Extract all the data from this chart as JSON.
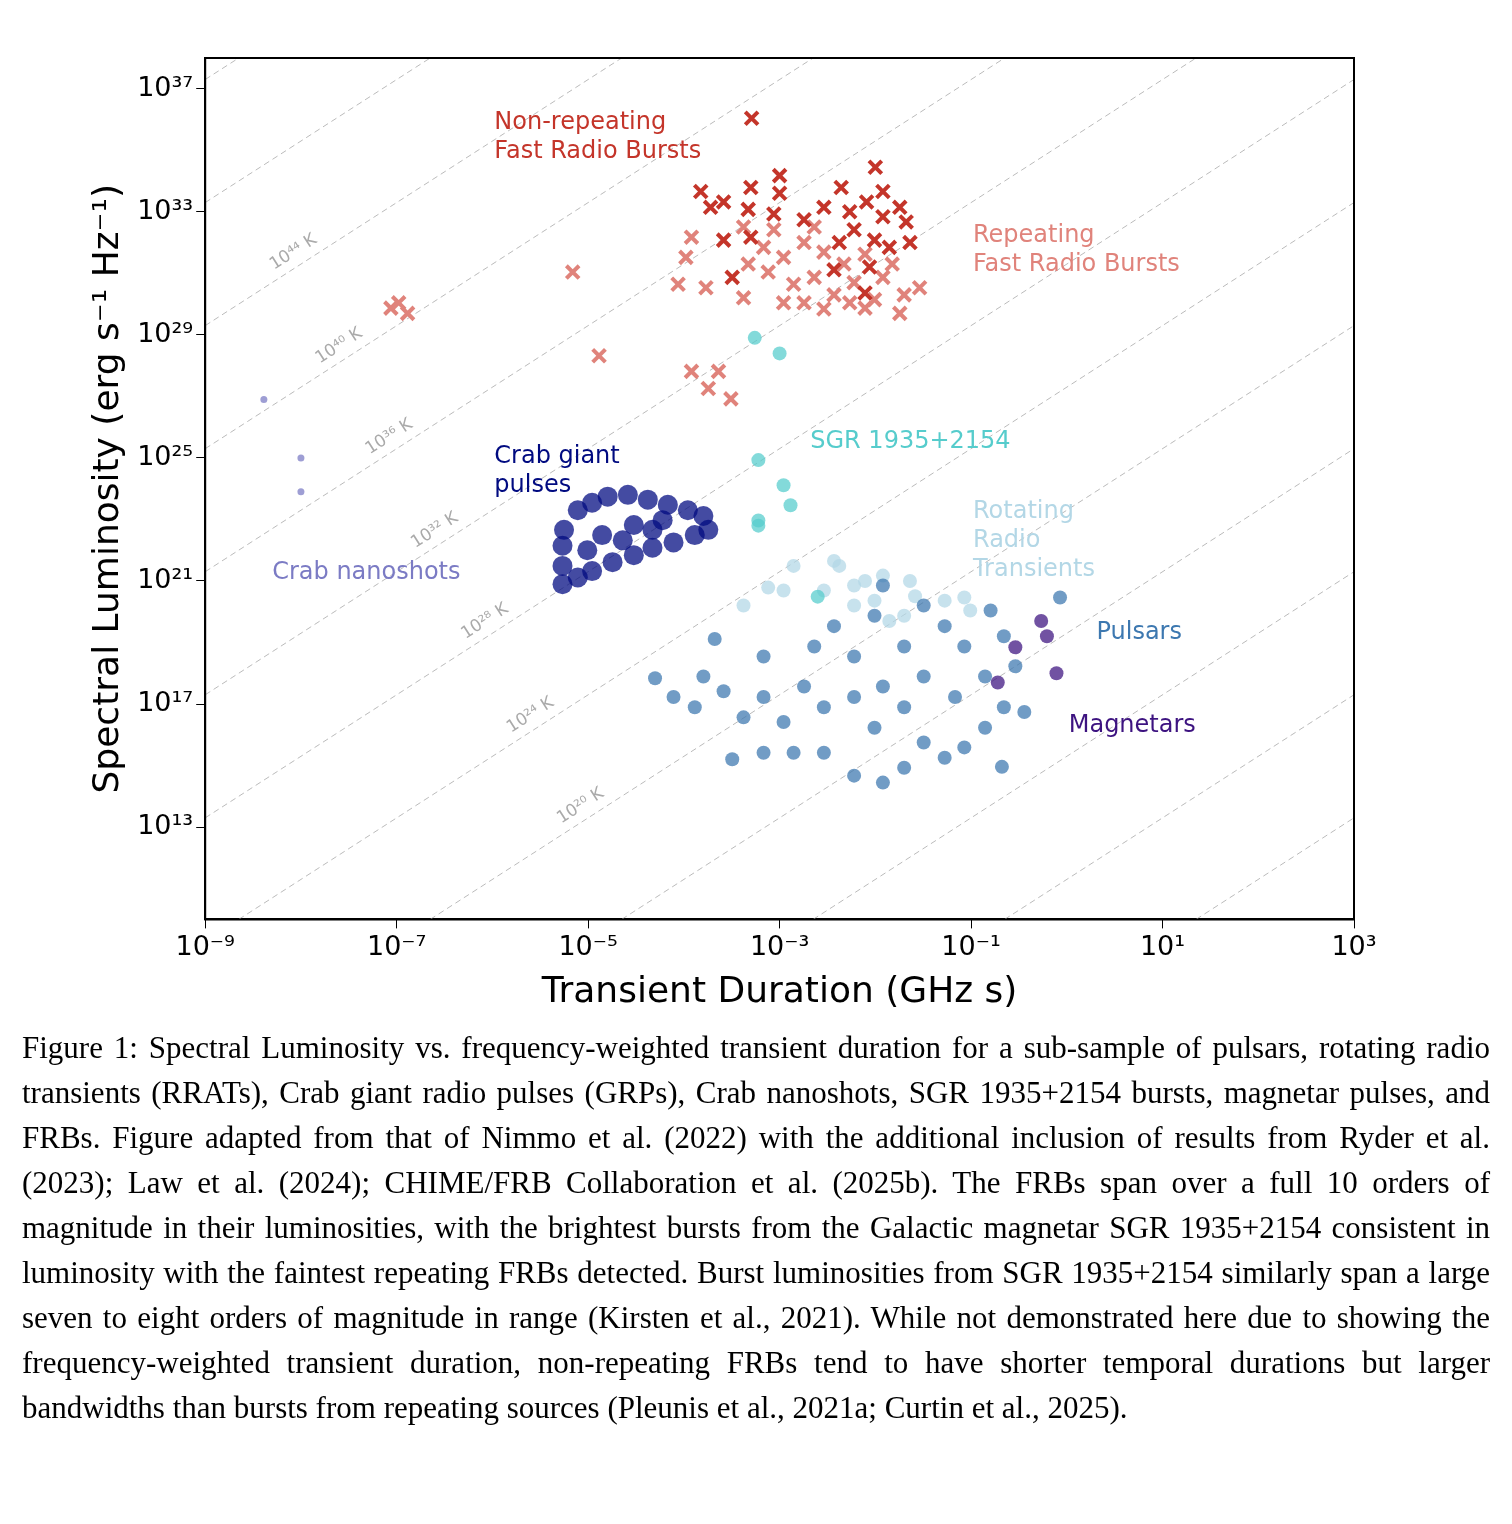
{
  "chart_data": {
    "type": "scatter",
    "xlabel": "Transient Duration (GHz s)",
    "ylabel": "Spectral Luminosity (erg s⁻¹ Hz⁻¹)",
    "log": "xy",
    "grid": false,
    "legend": false,
    "xlim": [
      1e-09,
      1000
    ],
    "ylim": [
      10000000000.0,
      1e+38
    ],
    "xticks": [
      {
        "value": 1e-09,
        "label": "10⁻⁹"
      },
      {
        "value": 1e-07,
        "label": "10⁻⁷"
      },
      {
        "value": 1e-05,
        "label": "10⁻⁵"
      },
      {
        "value": 0.001,
        "label": "10⁻³"
      },
      {
        "value": 0.1,
        "label": "10⁻¹"
      },
      {
        "value": 10,
        "label": "10¹"
      },
      {
        "value": 1000,
        "label": "10³"
      }
    ],
    "yticks": [
      {
        "value": 10000000000000.0,
        "label": "10¹³"
      },
      {
        "value": 1e+17,
        "label": "10¹⁷"
      },
      {
        "value": 1e+21,
        "label": "10²¹"
      },
      {
        "value": 1e+25,
        "label": "10²⁵"
      },
      {
        "value": 1e+29,
        "label": "10²⁹"
      },
      {
        "value": 1e+33,
        "label": "10³³"
      },
      {
        "value": 1e+37,
        "label": "10³⁷"
      }
    ],
    "series": [
      {
        "type": "line",
        "color": "#bbbbbb",
        "line_style": "dashed",
        "marker": "none",
        "x": [
          22.4,
          1000
        ],
        "values": [
          10000000000.0,
          20000000000000.0
        ]
      },
      {
        "type": "line",
        "color": "#bbbbbb",
        "line_style": "dashed",
        "marker": "none",
        "x": [
          0.224,
          1000
        ],
        "values": [
          10000000000.0,
          2e+17
        ]
      },
      {
        "type": "line",
        "color": "#bbbbbb",
        "line_style": "dashed",
        "marker": "none",
        "x": [
          0.00224,
          1000
        ],
        "values": [
          10000000000.0,
          2e+21
        ]
      },
      {
        "type": "line",
        "color": "#bbbbbb",
        "line_style": "dashed",
        "marker": "none",
        "x": [
          2.24e-05,
          1000
        ],
        "values": [
          10000000000.0,
          2e+25
        ]
      },
      {
        "type": "line",
        "color": "#bbbbbb",
        "line_style": "dashed",
        "marker": "none",
        "x": [
          2.24e-07,
          1000
        ],
        "values": [
          10000000000.0,
          2e+29
        ]
      },
      {
        "type": "line",
        "color": "#bbbbbb",
        "line_style": "dashed",
        "marker": "none",
        "x": [
          2.24e-09,
          1000
        ],
        "values": [
          10000000000.0,
          2e+33
        ]
      },
      {
        "type": "line",
        "color": "#bbbbbb",
        "line_style": "dashed",
        "marker": "none",
        "x": [
          1e-09,
          1000
        ],
        "values": [
          20000000000000.0,
          2e+37
        ]
      },
      {
        "type": "line",
        "color": "#bbbbbb",
        "line_style": "dashed",
        "marker": "none",
        "x": [
          1e-09,
          22.4
        ],
        "values": [
          2e+17,
          1e+38
        ]
      },
      {
        "type": "line",
        "color": "#bbbbbb",
        "line_style": "dashed",
        "marker": "none",
        "x": [
          1e-09,
          0.224
        ],
        "values": [
          2e+21,
          1e+38
        ]
      },
      {
        "type": "line",
        "color": "#bbbbbb",
        "line_style": "dashed",
        "marker": "none",
        "x": [
          1e-09,
          0.00224
        ],
        "values": [
          2e+25,
          1e+38
        ]
      },
      {
        "type": "line",
        "color": "#bbbbbb",
        "line_style": "dashed",
        "marker": "none",
        "x": [
          1e-09,
          2.24e-05
        ],
        "values": [
          2e+29,
          1e+38
        ]
      },
      {
        "type": "line",
        "color": "#bbbbbb",
        "line_style": "dashed",
        "marker": "none",
        "x": [
          1e-09,
          2.24e-07
        ],
        "values": [
          2e+33,
          1e+38
        ]
      },
      {
        "type": "line",
        "color": "#bbbbbb",
        "line_style": "dashed",
        "marker": "none",
        "x": [
          1e-09,
          2.24e-09
        ],
        "values": [
          2e+37,
          1e+38
        ]
      },
      {
        "type": "scatter",
        "name": "Rotating Radio Transients",
        "color": "#b3d7e6",
        "marker": "circle",
        "x": [
          0.0014,
          0.0037,
          0.0042,
          0.00042,
          0.00076,
          0.006,
          0.0078,
          0.012,
          0.023,
          0.026,
          0.0098,
          0.053,
          0.085,
          0.098,
          0.006,
          0.02,
          0.0011,
          0.0029,
          0.014
        ],
        "values": [
          3.1e+21,
          4.5e+21,
          3.1e+21,
          1.6e+20,
          6.1e+20,
          7.1e+20,
          1e+21,
          1.5e+21,
          1e+21,
          3.2e+20,
          2.3e+20,
          2.3e+20,
          2.9e+20,
          1.1e+20,
          1.6e+20,
          7.4e+19,
          4.9e+20,
          4.9e+20,
          5e+19
        ]
      },
      {
        "type": "scatter",
        "name": "Pulsars",
        "color": "#3d78b0",
        "marker": "circle",
        "x": [
          5e-05,
          7.8e-05,
          0.00013,
          0.00016,
          0.00026,
          0.00042,
          0.00068,
          0.0011,
          0.0018,
          0.0023,
          0.0037,
          0.006,
          0.0098,
          0.012,
          0.02,
          0.032,
          0.053,
          0.085,
          0.16,
          0.22,
          0.29,
          0.22,
          0.14,
          0.085,
          0.053,
          0.032,
          0.02,
          0.012,
          0.006,
          0.0029,
          0.0014,
          0.00068,
          0.00032,
          0.00021,
          0.012,
          0.032,
          0.006,
          0.068,
          0.0029,
          0.85,
          0.36,
          0.21,
          0.0098,
          0.00068,
          0.02,
          0.14
        ],
        "values": [
          6.9e+17,
          1.7e+17,
          7.9e+16,
          7.9e+17,
          2.6e+17,
          3.7e+16,
          1.7e+17,
          2.6e+16,
          3.7e+17,
          7.4e+18,
          3.4e+19,
          3.5e+18,
          7.4e+19,
          7.1e+20,
          7.4e+18,
          1.6e+20,
          3.4e+19,
          7.4e+18,
          1.1e+20,
          1.6e+19,
          1.7e+18,
          7.9e+16,
          1.7e+16,
          3900000000000000.0,
          1800000000000000.0,
          5600000000000000.0,
          850000000000000.0,
          280000000000000.0,
          470000000000000.0,
          2600000000000000.0,
          2600000000000000.0,
          2600000000000000.0,
          1600000000000000.0,
          1.3e+19,
          3.7e+17,
          7.9e+17,
          1.7e+17,
          1.7e+17,
          7.9e+16,
          2.9e+20,
          5.5e+16,
          910000000000000.0,
          1.7e+16,
          3.5e+18,
          7.9e+16,
          7.9e+17
        ]
      },
      {
        "type": "scatter",
        "name": "Magnetars",
        "color": "#3d1380",
        "marker": "circle",
        "x": [
          0.54,
          0.62,
          0.29,
          0.78,
          0.19
        ],
        "values": [
          5e+19,
          1.6e+19,
          7e+18,
          1e+18,
          5e+17
        ]
      },
      {
        "type": "scatter",
        "name": "Crab giant pulses",
        "color": "#000a80",
        "marker": "circle",
        "x": [
          5.4e-06,
          5.4e-06,
          5.4e-06,
          5.6e-06,
          7.8e-06,
          1.1e-05,
          1.6e-05,
          2.6e-05,
          4.2e-05,
          6.8e-05,
          0.00011,
          0.00016,
          0.00018,
          0.00013,
          7.8e-05,
          4.7e-05,
          3e-05,
          1.8e-05,
          1.1e-05,
          7.8e-06,
          1.4e-05,
          3e-05,
          6e-05,
          9.8e-06,
          2.3e-05,
          4.7e-05
        ],
        "values": [
          7.9e+20,
          3.1e+21,
          1.4e+22,
          4.6e+22,
          2e+23,
          3.5e+23,
          5.5e+23,
          6.3e+23,
          4.4e+23,
          3e+23,
          2e+23,
          1.3e+23,
          4.6e+22,
          3.1e+22,
          1.8e+22,
          1.2e+22,
          6.9e+21,
          4.1e+21,
          2.1e+21,
          1.3e+21,
          3.1e+22,
          6.6e+22,
          9.5e+22,
          1e+22,
          2.1e+22,
          4.6e+22
        ]
      },
      {
        "type": "scatter",
        "name": "Crab nanoshots",
        "color": "#7b7bc4",
        "marker": "circle",
        "x": [
          4.1e-09,
          1e-08,
          1e-08
        ],
        "values": [
          8e+26,
          1e+25,
          8e+23
        ]
      },
      {
        "type": "scatter",
        "name": "Repeating Fast Radio Bursts",
        "color": "#e0837b",
        "marker": "cross",
        "x": [
          8.7e-08,
          1.05e-07,
          1.3e-07,
          6.9e-06,
          1.3e-05,
          0.00012,
          0.00023,
          0.00018,
          0.00031,
          8.7e-05,
          0.000105,
          0.00012,
          0.00017,
          0.00042,
          0.0011,
          0.018,
          0.029,
          0.0078,
          0.00068,
          0.0011,
          0.0018,
          0.0029,
          0.0047,
          0.0023,
          0.0014,
          0.0037,
          0.006,
          0.0098,
          0.012,
          0.02,
          0.0029,
          0.0018,
          0.00076,
          0.00047,
          0.00087,
          0.0023,
          0.0078,
          0.0054,
          0.00042,
          0.015
        ],
        "values": [
          7.4e+29,
          1.1e+30,
          5e+29,
          1.1e+31,
          2.1e+28,
          6.5e+27,
          6.5e+27,
          1.8e+27,
          8.3e+26,
          4.4e+30,
          3.3e+31,
          1.5e+32,
          3.4e+30,
          1.6e+30,
          1.1e+30,
          5e+29,
          3.4e+30,
          7.4e+29,
          7e+31,
          3.3e+31,
          1e+32,
          4.9e+31,
          2e+31,
          7.4e+30,
          4.4e+30,
          2e+30,
          5e+30,
          1.4e+30,
          7.4e+30,
          2e+30,
          6.9e+29,
          1.1e+30,
          1.1e+31,
          2e+31,
          2.6e+32,
          3.2e+32,
          4.2e+31,
          1.1e+30,
          3.2e+32,
          2e+31
        ]
      },
      {
        "type": "scatter",
        "name": "Non-repeating Fast Radio Bursts",
        "color": "#c4352a",
        "marker": "cross",
        "x": [
          0.00051,
          0.01,
          0.00015,
          0.0005,
          0.001,
          0.001,
          0.0044,
          0.012,
          0.00019,
          0.00026,
          0.00047,
          0.00087,
          0.0018,
          0.0029,
          0.0054,
          0.0081,
          0.012,
          0.021,
          0.0005,
          0.00026,
          0.006,
          0.0098,
          0.023,
          0.00032,
          0.0037,
          0.0087,
          0.0078,
          0.014,
          0.018,
          0.0042
        ],
        "values": [
          1.1e+36,
          2.8e+34,
          4.6e+33,
          6.2e+33,
          1.5e+34,
          4e+33,
          6.2e+33,
          4.6e+33,
          1.4e+33,
          2.1e+33,
          1.2e+33,
          8.5e+32,
          5.5e+32,
          1.4e+33,
          1e+33,
          2.1e+33,
          6.9e+32,
          4.7e+32,
          1.5e+32,
          1.2e+32,
          2.6e+32,
          1.2e+32,
          1e+32,
          7.4e+30,
          1.3e+31,
          1.6e+31,
          2.3e+30,
          7e+31,
          1.4e+33,
          1e+32
        ]
      },
      {
        "type": "scatter",
        "name": "SGR 1935+2154",
        "color": "#56cccc",
        "marker": "circle",
        "x": [
          0.00055,
          0.001,
          0.0006,
          0.0011,
          0.0013,
          0.0006,
          0.0006,
          0.0025
        ],
        "values": [
          8e+28,
          2.5e+28,
          8.5e+24,
          1.3e+24,
          2.9e+23,
          9.3e+22,
          6.3e+22,
          3.1e+20
        ]
      }
    ],
    "annotations": [
      {
        "text": "10⁴⁴ K",
        "x": 1e-08,
        "y": 2e+31
      },
      {
        "text": "10⁴⁰ K",
        "x": 3e-08,
        "y": 1.8e+28
      },
      {
        "text": "10³⁶ K",
        "x": 1e-07,
        "y": 2e+25
      },
      {
        "text": "10³² K",
        "x": 3e-07,
        "y": 1.8e+22
      },
      {
        "text": "10²⁸ K",
        "x": 1e-06,
        "y": 2e+19
      },
      {
        "text": "10²⁴ K",
        "x": 3e-06,
        "y": 1.8e+16
      },
      {
        "text": "10²⁰ K",
        "x": 1e-05,
        "y": 20000000000000.0
      },
      "Figure 1: Spectral Luminosity vs. frequency-weighted transient duration for a sub-sample of pulsars, rotating radio transients (RRATs), Crab giant radio pulses (GRPs), Crab nanoshots, SGR 1935+2154 bursts, magnetar pulses, and FRBs. Figure adapted from that of Nimmo et al. (2022) with the additional inclusion of results from Ryder et al. (2023); Law et al. (2024); CHIME/FRB Collaboration et al. (2025b). The FRBs span over a full 10 orders of magnitude in their luminosities, with the brightest bursts from the Galactic magnetar SGR 1935+2154 consistent in luminosity with the faintest repeating FRBs detected. Burst luminosities from SGR 1935+2154 similarly span a large seven to eight orders of magnitude in range (Kirsten et al., 2021). While not demonstrated here due to showing the frequency-weighted transient duration, non-repeating FRBs tend to have shorter temporal durations but larger bandwidths than bursts from repeating sources (Pleunis et al., 2021a; Curtin et al., 2025)."
    ]
  }
}
